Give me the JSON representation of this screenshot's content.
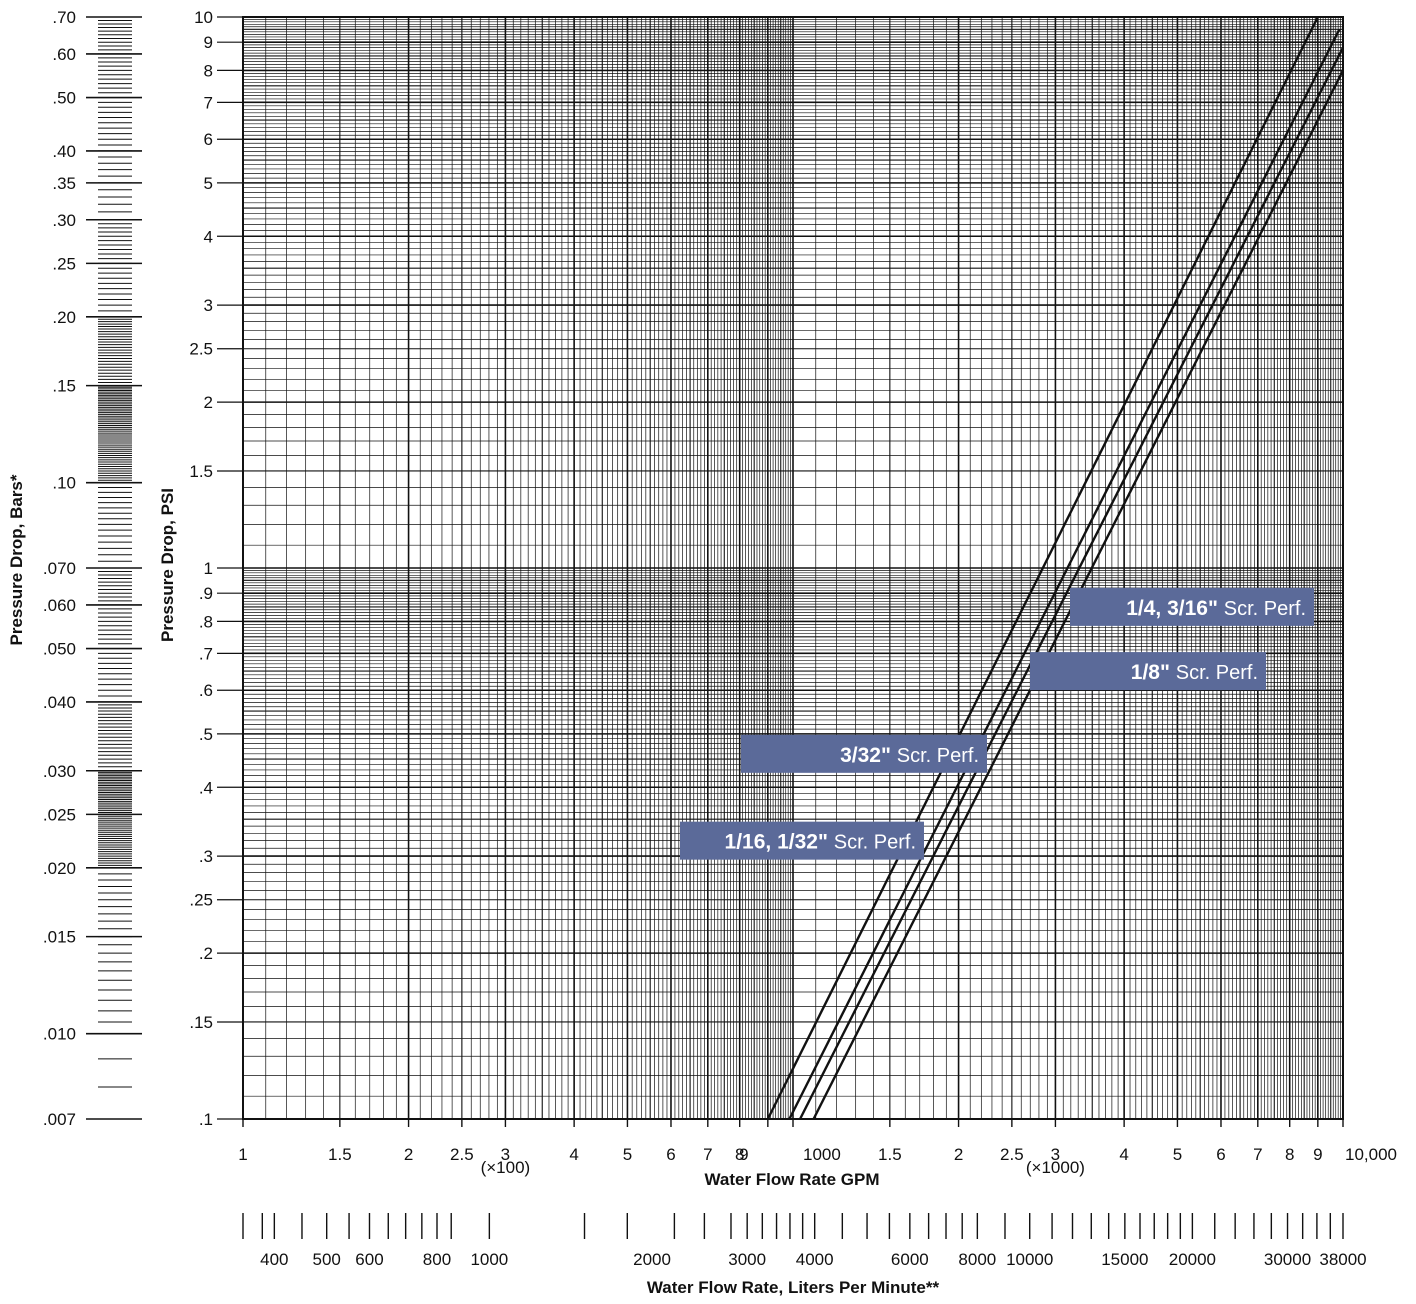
{
  "chart_data": {
    "type": "line",
    "x_scale": "log",
    "y_scale": "log",
    "xlim": [
      100,
      10000
    ],
    "ylim": [
      0.1,
      10
    ],
    "grid": true,
    "xlabel": "Water Flow Rate GPM",
    "ylabel": "Pressure Drop, PSI",
    "x_tick_labels": [
      {
        "value": 100,
        "label": "1"
      },
      {
        "value": 150,
        "label": "1.5"
      },
      {
        "value": 200,
        "label": "2"
      },
      {
        "value": 250,
        "label": "2.5"
      },
      {
        "value": 300,
        "label": "3"
      },
      {
        "value": 400,
        "label": "4"
      },
      {
        "value": 500,
        "label": "5"
      },
      {
        "value": 600,
        "label": "6"
      },
      {
        "value": 700,
        "label": "7"
      },
      {
        "value": 800,
        "label": "8"
      },
      {
        "value": 900,
        "label": "9"
      },
      {
        "value": 1000,
        "label": "1000"
      },
      {
        "value": 1500,
        "label": "1.5"
      },
      {
        "value": 2000,
        "label": "2"
      },
      {
        "value": 2500,
        "label": "2.5"
      },
      {
        "value": 3000,
        "label": "3"
      },
      {
        "value": 4000,
        "label": "4"
      },
      {
        "value": 5000,
        "label": "5"
      },
      {
        "value": 6000,
        "label": "6"
      },
      {
        "value": 7000,
        "label": "7"
      },
      {
        "value": 8000,
        "label": "8"
      },
      {
        "value": 9000,
        "label": "9"
      },
      {
        "value": 10000,
        "label": "10,000"
      }
    ],
    "x_multiplier_labels": [
      {
        "value": 300,
        "label": "(×100)"
      },
      {
        "value": 3000,
        "label": "(×1000)"
      }
    ],
    "y_tick_labels": [
      {
        "value": 0.1,
        "label": ".1"
      },
      {
        "value": 0.15,
        "label": ".15"
      },
      {
        "value": 0.2,
        "label": ".2"
      },
      {
        "value": 0.25,
        "label": ".25"
      },
      {
        "value": 0.3,
        "label": ".3"
      },
      {
        "value": 0.4,
        "label": ".4"
      },
      {
        "value": 0.5,
        "label": ".5"
      },
      {
        "value": 0.6,
        "label": ".6"
      },
      {
        "value": 0.7,
        "label": ".7"
      },
      {
        "value": 0.8,
        "label": ".8"
      },
      {
        "value": 0.9,
        "label": ".9"
      },
      {
        "value": 1,
        "label": "1"
      },
      {
        "value": 1.5,
        "label": "1.5"
      },
      {
        "value": 2,
        "label": "2"
      },
      {
        "value": 2.5,
        "label": "2.5"
      },
      {
        "value": 3,
        "label": "3"
      },
      {
        "value": 4,
        "label": "4"
      },
      {
        "value": 5,
        "label": "5"
      },
      {
        "value": 6,
        "label": "6"
      },
      {
        "value": 7,
        "label": "7"
      },
      {
        "value": 8,
        "label": "8"
      },
      {
        "value": 9,
        "label": "9"
      },
      {
        "value": 10,
        "label": "10"
      }
    ],
    "series": [
      {
        "name_bold": "1/16, 1/32\"",
        "name_rest": "Scr. Perf.",
        "x": [
          900,
          9000
        ],
        "y": [
          0.1,
          10
        ]
      },
      {
        "name_bold": "3/32\"",
        "name_rest": "Scr. Perf.",
        "x": [
          985,
          9850
        ],
        "y": [
          0.1,
          9.5
        ]
      },
      {
        "name_bold": "1/8\"",
        "name_rest": "Scr. Perf.",
        "x": [
          1030,
          10000
        ],
        "y": [
          0.1,
          8.8
        ]
      },
      {
        "name_bold": "1/4, 3/16\"",
        "name_rest": "Scr. Perf.",
        "x": [
          1090,
          10000
        ],
        "y": [
          0.1,
          8.0
        ]
      }
    ],
    "series_label_rows": [
      {
        "series": 0,
        "y": 0.32
      },
      {
        "series": 1,
        "y": 0.46
      },
      {
        "series": 2,
        "y": 0.65
      },
      {
        "series": 3,
        "y": 0.85
      }
    ],
    "bars_axis": {
      "label": "Pressure Drop, Bars*",
      "tick_labels": [
        {
          "value": 0.7,
          "label": ".70"
        },
        {
          "value": 0.6,
          "label": ".60"
        },
        {
          "value": 0.5,
          "label": ".50"
        },
        {
          "value": 0.4,
          "label": ".40"
        },
        {
          "value": 0.35,
          "label": ".35"
        },
        {
          "value": 0.3,
          "label": ".30"
        },
        {
          "value": 0.25,
          "label": ".25"
        },
        {
          "value": 0.2,
          "label": ".20"
        },
        {
          "value": 0.15,
          "label": ".15"
        },
        {
          "value": 0.1,
          "label": ".10"
        },
        {
          "value": 0.07,
          "label": ".070"
        },
        {
          "value": 0.06,
          "label": ".060"
        },
        {
          "value": 0.05,
          "label": ".050"
        },
        {
          "value": 0.04,
          "label": ".040"
        },
        {
          "value": 0.03,
          "label": ".030"
        },
        {
          "value": 0.025,
          "label": ".025"
        },
        {
          "value": 0.02,
          "label": ".020"
        },
        {
          "value": 0.015,
          "label": ".015"
        },
        {
          "value": 0.01,
          "label": ".010"
        },
        {
          "value": 0.007,
          "label": ".007"
        }
      ]
    },
    "lpm_axis": {
      "label": "Water Flow Rate, Liters Per Minute**",
      "tick_labels": [
        {
          "value": 400,
          "label": "400"
        },
        {
          "value": 500,
          "label": "500"
        },
        {
          "value": 600,
          "label": "600"
        },
        {
          "value": 800,
          "label": "800"
        },
        {
          "value": 1000,
          "label": "1000"
        },
        {
          "value": 2000,
          "label": "2000"
        },
        {
          "value": 3000,
          "label": "3000"
        },
        {
          "value": 4000,
          "label": "4000"
        },
        {
          "value": 6000,
          "label": "6000"
        },
        {
          "value": 8000,
          "label": "8000"
        },
        {
          "value": 10000,
          "label": "10000"
        },
        {
          "value": 15000,
          "label": "15000"
        },
        {
          "value": 20000,
          "label": "20000"
        },
        {
          "value": 30000,
          "label": "30000"
        },
        {
          "value": 38000,
          "label": "38000"
        }
      ]
    },
    "colors": {
      "curve": "#111111",
      "grid": "#111111",
      "label_box": "#5b6a99",
      "label_text": "#ffffff"
    }
  }
}
